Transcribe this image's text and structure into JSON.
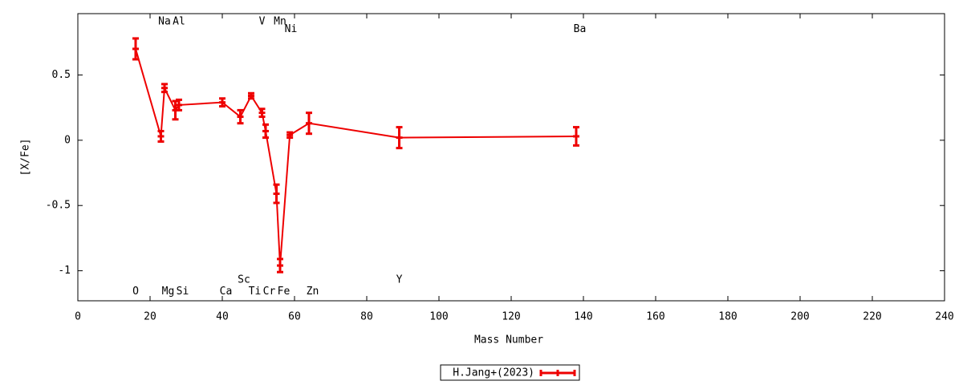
{
  "chart_data": {
    "type": "errorline",
    "xlabel": "Mass Number",
    "ylabel": "[X/Fe]",
    "xlim": [
      0,
      240
    ],
    "xticks": [
      0,
      20,
      40,
      60,
      80,
      100,
      120,
      140,
      160,
      180,
      200,
      220,
      240
    ],
    "ylim": [
      -1.23,
      0.97
    ],
    "yticks": [
      -1,
      -0.5,
      0,
      0.5
    ],
    "grid": false,
    "legend": "bottom",
    "series": [
      {
        "name": "H.Jang+(2023)",
        "color": "#ee0000",
        "x": [
          16,
          23,
          24,
          27,
          28,
          40,
          45,
          48,
          51,
          52,
          55,
          56,
          58.7,
          64,
          89,
          138
        ],
        "values": [
          0.7,
          0.03,
          0.4,
          0.23,
          0.27,
          0.29,
          0.18,
          0.34,
          0.21,
          0.07,
          -0.41,
          -0.96,
          0.04,
          0.13,
          0.02,
          0.03
        ],
        "errors": [
          0.08,
          0.04,
          0.03,
          0.07,
          0.04,
          0.03,
          0.05,
          0.02,
          0.03,
          0.05,
          0.07,
          0.05,
          0.02,
          0.08,
          0.08,
          0.07
        ]
      }
    ],
    "annotations": [
      {
        "text": "O",
        "x": 16,
        "y": -1.16
      },
      {
        "text": "Na",
        "x": 24,
        "y": 0.91
      },
      {
        "text": "Mg",
        "x": 25,
        "y": -1.16
      },
      {
        "text": "Al",
        "x": 28,
        "y": 0.91
      },
      {
        "text": "Si",
        "x": 29,
        "y": -1.16
      },
      {
        "text": "Ca",
        "x": 41,
        "y": -1.16
      },
      {
        "text": "Sc",
        "x": 46,
        "y": -1.07
      },
      {
        "text": "Ti",
        "x": 49,
        "y": -1.16
      },
      {
        "text": "V",
        "x": 51,
        "y": 0.91
      },
      {
        "text": "Cr",
        "x": 53,
        "y": -1.16
      },
      {
        "text": "Mn",
        "x": 56,
        "y": 0.91
      },
      {
        "text": "Fe",
        "x": 57,
        "y": -1.16
      },
      {
        "text": "Ni",
        "x": 59,
        "y": 0.85
      },
      {
        "text": "Zn",
        "x": 65,
        "y": -1.16
      },
      {
        "text": "Y",
        "x": 89,
        "y": -1.07
      },
      {
        "text": "Ba",
        "x": 139,
        "y": 0.85
      }
    ]
  }
}
